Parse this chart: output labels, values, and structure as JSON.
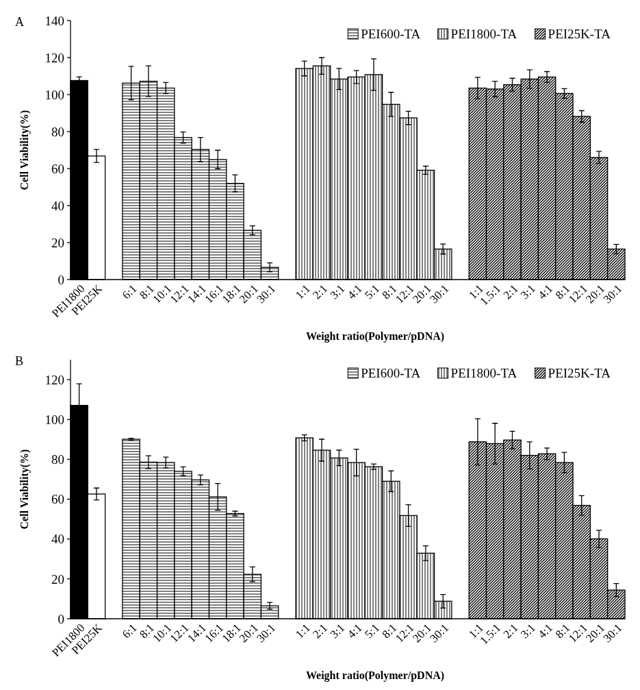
{
  "chart_data": [
    {
      "type": "bar",
      "annotations": [
        "A"
      ],
      "xlabel": "Weight ratio(Polymer/pDNA)",
      "ylabel": "Cell Viability(%)",
      "legend": "top right",
      "ylim": [
        0,
        140
      ],
      "yticks": [
        0,
        20,
        40,
        60,
        80,
        100,
        120,
        140
      ],
      "categories": [
        "PEI1800",
        "PEI25K",
        null,
        "6:1",
        "8:1",
        "10:1",
        "12:1",
        "14:1",
        "16:1",
        "18:1",
        "20:1",
        "30:1",
        null,
        "1:1",
        "2:1",
        "3:1",
        "4:1",
        "5:1",
        "8:1",
        "12:1",
        "20:1",
        "30:1",
        null,
        "1:1",
        "1.5:1",
        "2:1",
        "3:1",
        "4:1",
        "8:1",
        "12:1",
        "20:1",
        "30:1"
      ],
      "series": [
        {
          "color": "#000000",
          "values": [
            107.6,
            null,
            null,
            null,
            null,
            null,
            null,
            null,
            null,
            null,
            null,
            null,
            null,
            null,
            null,
            null,
            null,
            null,
            null,
            null,
            null,
            null,
            null,
            null,
            null,
            null,
            null,
            null,
            null,
            null,
            null,
            null
          ],
          "errors": [
            2,
            null,
            null,
            null,
            null,
            null,
            null,
            null,
            null,
            null,
            null,
            null,
            null,
            null,
            null,
            null,
            null,
            null,
            null,
            null,
            null,
            null,
            null,
            null,
            null,
            null,
            null,
            null,
            null,
            null,
            null,
            null
          ]
        },
        {
          "color": "#ffffff",
          "values": [
            null,
            66.8,
            null,
            null,
            null,
            null,
            null,
            null,
            null,
            null,
            null,
            null,
            null,
            null,
            null,
            null,
            null,
            null,
            null,
            null,
            null,
            null,
            null,
            null,
            null,
            null,
            null,
            null,
            null,
            null,
            null,
            null
          ],
          "errors": [
            null,
            3.5,
            null,
            null,
            null,
            null,
            null,
            null,
            null,
            null,
            null,
            null,
            null,
            null,
            null,
            null,
            null,
            null,
            null,
            null,
            null,
            null,
            null,
            null,
            null,
            null,
            null,
            null,
            null,
            null,
            null,
            null
          ]
        },
        {
          "name": "PEI600-TA",
          "color": "#000000",
          "values": [
            null,
            null,
            null,
            106.2,
            107.2,
            103.5,
            76.8,
            70.3,
            64.9,
            52,
            26.6,
            6.6,
            null,
            null,
            null,
            null,
            null,
            null,
            null,
            null,
            null,
            null,
            null,
            null,
            null,
            null,
            null,
            null,
            null,
            null,
            null,
            null
          ],
          "errors": [
            null,
            null,
            null,
            9,
            8.3,
            3,
            3,
            6.5,
            5,
            4.6,
            2.4,
            2.4,
            null,
            null,
            null,
            null,
            null,
            null,
            null,
            null,
            null,
            null,
            null,
            null,
            null,
            null,
            null,
            null,
            null,
            null,
            null,
            null
          ]
        },
        {
          "name": "PEI1800-TA",
          "color": "#000000",
          "values": [
            null,
            null,
            null,
            null,
            null,
            null,
            null,
            null,
            null,
            null,
            null,
            null,
            null,
            114.1,
            115.5,
            108.4,
            109.5,
            110.8,
            94.7,
            87.4,
            59.1,
            16.5,
            null,
            null,
            null,
            null,
            null,
            null,
            null,
            null,
            null,
            null
          ],
          "errors": [
            null,
            null,
            null,
            null,
            null,
            null,
            null,
            null,
            null,
            null,
            null,
            null,
            null,
            4,
            4.5,
            5.7,
            3.5,
            8.5,
            6.5,
            3.6,
            2.2,
            2.7,
            null,
            null,
            null,
            null,
            null,
            null,
            null,
            null,
            null,
            null
          ]
        },
        {
          "name": "PEI25K-TA",
          "color": "#000000",
          "values": [
            null,
            null,
            null,
            null,
            null,
            null,
            null,
            null,
            null,
            null,
            null,
            null,
            null,
            null,
            null,
            null,
            null,
            null,
            null,
            null,
            null,
            null,
            null,
            103.5,
            103,
            105.3,
            108.4,
            109.5,
            100.6,
            88.2,
            66,
            16.5
          ],
          "errors": [
            null,
            null,
            null,
            null,
            null,
            null,
            null,
            null,
            null,
            null,
            null,
            null,
            null,
            null,
            null,
            null,
            null,
            null,
            null,
            null,
            null,
            null,
            null,
            5.8,
            4.2,
            3.5,
            5,
            2.9,
            2.6,
            3.1,
            3.3,
            2.5
          ]
        }
      ]
    },
    {
      "type": "bar",
      "annotations": [
        "B"
      ],
      "xlabel": "Weight ratio(Polymer/pDNA)",
      "ylabel": "Cell Viability(%)",
      "legend": "top right",
      "ylim": [
        0,
        130
      ],
      "yticks": [
        0,
        20,
        40,
        60,
        80,
        100,
        120
      ],
      "categories": [
        "PEI1800",
        "PEI25K",
        null,
        "6:1",
        "8:1",
        "10:1",
        "12:1",
        "14:1",
        "16:1",
        "18:1",
        "20:1",
        "30:1",
        null,
        "1:1",
        "2:1",
        "3:1",
        "4:1",
        "5:1",
        "8:1",
        "12:1",
        "20:1",
        "30:1",
        null,
        "1:1",
        "1.5:1",
        "2:1",
        "3:1",
        "4:1",
        "8:1",
        "12:1",
        "20:1",
        "30:1"
      ],
      "series": [
        {
          "color": "#000000",
          "values": [
            107.1,
            null,
            null,
            null,
            null,
            null,
            null,
            null,
            null,
            null,
            null,
            null,
            null,
            null,
            null,
            null,
            null,
            null,
            null,
            null,
            null,
            null,
            null,
            null,
            null,
            null,
            null,
            null,
            null,
            null,
            null,
            null
          ],
          "errors": [
            10.8,
            null,
            null,
            null,
            null,
            null,
            null,
            null,
            null,
            null,
            null,
            null,
            null,
            null,
            null,
            null,
            null,
            null,
            null,
            null,
            null,
            null,
            null,
            null,
            null,
            null,
            null,
            null,
            null,
            null,
            null,
            null
          ]
        },
        {
          "color": "#ffffff",
          "values": [
            null,
            62.6,
            null,
            null,
            null,
            null,
            null,
            null,
            null,
            null,
            null,
            null,
            null,
            null,
            null,
            null,
            null,
            null,
            null,
            null,
            null,
            null,
            null,
            null,
            null,
            null,
            null,
            null,
            null,
            null,
            null,
            null
          ],
          "errors": [
            null,
            3,
            null,
            null,
            null,
            null,
            null,
            null,
            null,
            null,
            null,
            null,
            null,
            null,
            null,
            null,
            null,
            null,
            null,
            null,
            null,
            null,
            null,
            null,
            null,
            null,
            null,
            null,
            null,
            null,
            null,
            null
          ]
        },
        {
          "name": "PEI600-TA",
          "color": "#000000",
          "values": [
            null,
            null,
            null,
            90.1,
            78.6,
            78.4,
            74,
            69.7,
            61.2,
            52.8,
            22.3,
            6.5,
            null,
            null,
            null,
            null,
            null,
            null,
            null,
            null,
            null,
            null,
            null,
            null,
            null,
            null,
            null,
            null,
            null,
            null,
            null,
            null
          ],
          "errors": [
            null,
            null,
            null,
            0.5,
            3.2,
            2.7,
            2.2,
            2.5,
            6.7,
            1.2,
            3.7,
            1.7,
            null,
            null,
            null,
            null,
            null,
            null,
            null,
            null,
            null,
            null,
            null,
            null,
            null,
            null,
            null,
            null,
            null,
            null,
            null,
            null
          ]
        },
        {
          "name": "PEI1800-TA",
          "color": "#000000",
          "values": [
            null,
            null,
            null,
            null,
            null,
            null,
            null,
            null,
            null,
            null,
            null,
            null,
            null,
            90.8,
            84.6,
            80.7,
            78.4,
            76.3,
            69,
            51.8,
            32.9,
            8.8,
            null,
            null,
            null,
            null,
            null,
            null,
            null,
            null,
            null,
            null
          ],
          "errors": [
            null,
            null,
            null,
            null,
            null,
            null,
            null,
            null,
            null,
            null,
            null,
            null,
            null,
            1.5,
            5.5,
            3.9,
            6.7,
            1.4,
            5.2,
            5.4,
            3.7,
            3.4,
            null,
            null,
            null,
            null,
            null,
            null,
            null,
            null,
            null,
            null
          ]
        },
        {
          "name": "PEI25K-TA",
          "color": "#000000",
          "values": [
            null,
            null,
            null,
            null,
            null,
            null,
            null,
            null,
            null,
            null,
            null,
            null,
            null,
            null,
            null,
            null,
            null,
            null,
            null,
            null,
            null,
            null,
            null,
            88.8,
            87.9,
            89.7,
            82,
            82.8,
            78.4,
            56.9,
            40.1,
            14.4
          ],
          "errors": [
            null,
            null,
            null,
            null,
            null,
            null,
            null,
            null,
            null,
            null,
            null,
            null,
            null,
            null,
            null,
            null,
            null,
            null,
            null,
            null,
            null,
            null,
            null,
            11.6,
            10.2,
            4.4,
            6.8,
            2.9,
            5.1,
            4.9,
            4.3,
            3.3
          ]
        }
      ]
    }
  ]
}
